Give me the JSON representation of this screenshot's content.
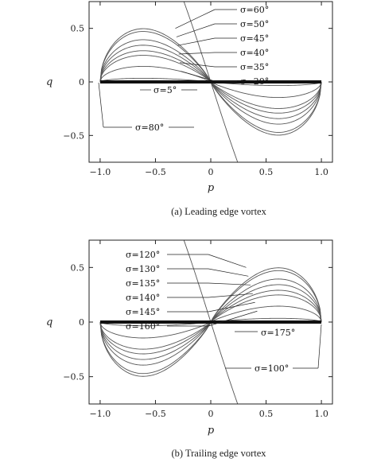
{
  "chart_data": [
    {
      "type": "line",
      "title": "",
      "xlabel": "p",
      "ylabel": "q",
      "xlim": [
        -1.1,
        1.1
      ],
      "ylim": [
        -0.75,
        0.75
      ],
      "xticks": [
        -1.0,
        -0.5,
        0,
        0.5,
        1.0
      ],
      "xtick_labels": [
        "−1.0",
        "−0.5",
        "0",
        "0.5",
        "1.0"
      ],
      "yticks": [
        0.5,
        0,
        -0.5
      ],
      "ytick_labels": [
        "0.5",
        "0",
        "−0.5"
      ],
      "caption": "(a) Leading edge vortex",
      "grid": false,
      "curve_type": "leading",
      "sigma_deg": [
        5,
        20,
        35,
        40,
        45,
        50,
        60,
        80
      ],
      "series": [
        {
          "name": "σ=5°",
          "sigma": 5,
          "peak_q": 0.04
        },
        {
          "name": "σ=20°",
          "sigma": 20,
          "peak_q": 0.17
        },
        {
          "name": "σ=35°",
          "sigma": 35,
          "peak_q": 0.29
        },
        {
          "name": "σ=40°",
          "sigma": 40,
          "peak_q": 0.34
        },
        {
          "name": "σ=45°",
          "sigma": 45,
          "peak_q": 0.4
        },
        {
          "name": "σ=50°",
          "sigma": 50,
          "peak_q": 0.46
        },
        {
          "name": "σ=60°",
          "sigma": 60,
          "peak_q": 0.58
        },
        {
          "name": "σ=80°",
          "sigma": 80,
          "peak_q": 0.55
        }
      ],
      "annotations": [
        "σ=60°",
        "σ=50°",
        "σ=45°",
        "σ=40°",
        "σ=35°",
        "σ=20°",
        "σ=5°",
        "σ=80°"
      ]
    },
    {
      "type": "line",
      "title": "",
      "xlabel": "p",
      "ylabel": "q",
      "xlim": [
        -1.1,
        1.1
      ],
      "ylim": [
        -0.75,
        0.75
      ],
      "xticks": [
        -1.0,
        -0.5,
        0,
        0.5,
        1.0
      ],
      "xtick_labels": [
        "−1.0",
        "−0.5",
        "0",
        "0.5",
        "1.0"
      ],
      "yticks": [
        0.5,
        0,
        -0.5
      ],
      "ytick_labels": [
        "0.5",
        "0",
        "−0.5"
      ],
      "caption": "(b) Trailing edge vortex",
      "grid": false,
      "curve_type": "trailing",
      "sigma_deg": [
        100,
        120,
        130,
        135,
        140,
        145,
        160,
        175
      ],
      "series": [
        {
          "name": "σ=100°",
          "sigma": 100,
          "peak_q": 0.55
        },
        {
          "name": "σ=120°",
          "sigma": 120,
          "peak_q": 0.58
        },
        {
          "name": "σ=130°",
          "sigma": 130,
          "peak_q": 0.46
        },
        {
          "name": "σ=135°",
          "sigma": 135,
          "peak_q": 0.4
        },
        {
          "name": "σ=140°",
          "sigma": 140,
          "peak_q": 0.34
        },
        {
          "name": "σ=145°",
          "sigma": 145,
          "peak_q": 0.29
        },
        {
          "name": "σ=160°",
          "sigma": 160,
          "peak_q": 0.17
        },
        {
          "name": "σ=175°",
          "sigma": 175,
          "peak_q": 0.04
        }
      ],
      "annotations": [
        "σ=120°",
        "σ=130°",
        "σ=135°",
        "σ=140°",
        "σ=145°",
        "σ=160°",
        "σ=175°",
        "σ=100°"
      ]
    }
  ]
}
